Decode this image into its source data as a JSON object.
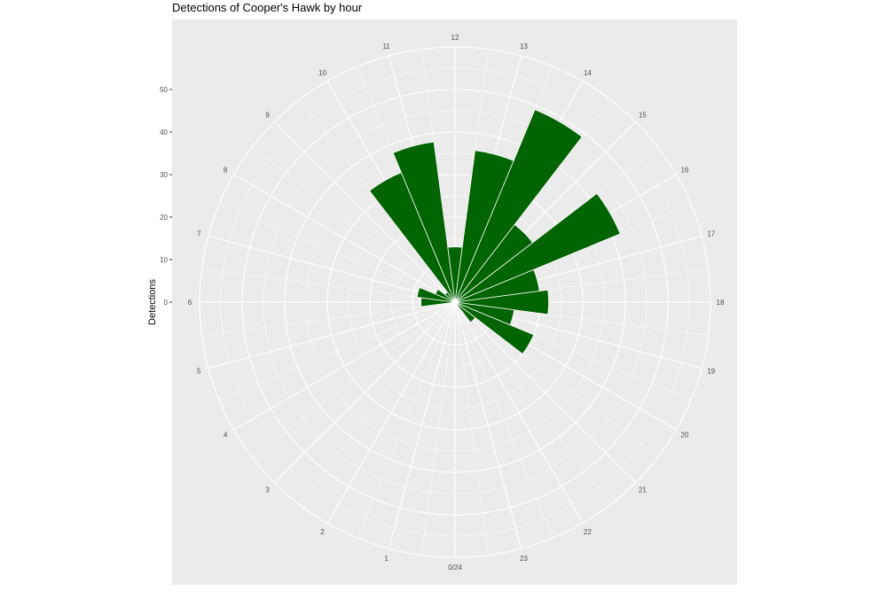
{
  "chart_data": {
    "type": "bar",
    "coord": "polar",
    "title": "Detections of Cooper's Hawk by hour",
    "xlabel": "",
    "ylabel": "Detections",
    "hour_labels": [
      "0/24",
      "1",
      "2",
      "3",
      "4",
      "5",
      "6",
      "7",
      "8",
      "9",
      "10",
      "11",
      "12",
      "13",
      "14",
      "15",
      "16",
      "17",
      "18",
      "19",
      "20",
      "21",
      "22",
      "23"
    ],
    "y_ticks": [
      0,
      10,
      20,
      30,
      40,
      50
    ],
    "y_tick_labels": [
      "0",
      "10",
      "20",
      "30",
      "40",
      "50"
    ],
    "ylim": [
      0,
      60
    ],
    "hours": [
      0,
      1,
      2,
      3,
      4,
      5,
      6,
      7,
      8,
      9,
      10,
      11,
      12,
      13,
      14,
      15,
      16,
      17,
      18,
      19,
      20,
      21,
      22,
      23
    ],
    "values": [
      0,
      0,
      0,
      1,
      1,
      1,
      8,
      9,
      5,
      3,
      33,
      38,
      13,
      36,
      49,
      23,
      42,
      20,
      22,
      14,
      20,
      6,
      1,
      1
    ],
    "bar_color": "#006400",
    "panel_color": "#ebebeb",
    "grid_color": "#ffffff",
    "grid": true
  }
}
